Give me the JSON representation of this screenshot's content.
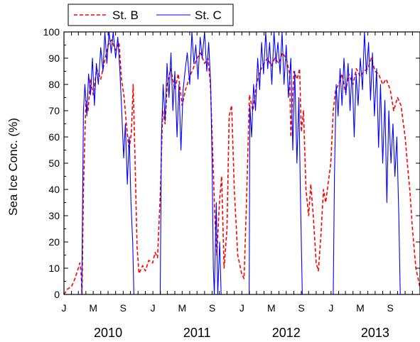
{
  "chart_data": {
    "type": "line",
    "title": "",
    "xlabel": "",
    "ylabel": "Sea Ice Conc. (%)",
    "ylim": [
      0,
      100
    ],
    "yticks": [
      0,
      10,
      20,
      30,
      40,
      50,
      60,
      70,
      80,
      90,
      100
    ],
    "xlim": [
      "2010-01-01",
      "2013-12-31"
    ],
    "month_tick_labels": [
      "J",
      "M",
      "S"
    ],
    "years": [
      "2010",
      "2011",
      "2012",
      "2013"
    ],
    "grid": false,
    "legend_position": "top-left",
    "series": [
      {
        "name": "St. B",
        "style": "dashed",
        "color": "#ff0000",
        "points": [
          [
            "2010-01-01",
            0
          ],
          [
            "2010-01-15",
            2
          ],
          [
            "2010-02-01",
            3
          ],
          [
            "2010-02-15",
            6
          ],
          [
            "2010-03-01",
            10
          ],
          [
            "2010-03-07",
            12
          ],
          [
            "2010-03-12",
            9
          ],
          [
            "2010-03-16",
            0
          ],
          [
            "2010-03-22",
            40
          ],
          [
            "2010-04-01",
            74
          ],
          [
            "2010-04-10",
            70
          ],
          [
            "2010-04-20",
            82
          ],
          [
            "2010-05-01",
            76
          ],
          [
            "2010-05-15",
            86
          ],
          [
            "2010-06-01",
            82
          ],
          [
            "2010-06-15",
            88
          ],
          [
            "2010-07-01",
            95
          ],
          [
            "2010-07-15",
            97
          ],
          [
            "2010-08-01",
            93
          ],
          [
            "2010-08-15",
            96
          ],
          [
            "2010-08-25",
            82
          ],
          [
            "2010-09-05",
            75
          ],
          [
            "2010-09-15",
            64
          ],
          [
            "2010-09-25",
            55
          ],
          [
            "2010-10-05",
            62
          ],
          [
            "2010-10-12",
            80
          ],
          [
            "2010-10-20",
            50
          ],
          [
            "2010-10-28",
            18
          ],
          [
            "2010-11-05",
            8
          ],
          [
            "2010-11-20",
            11
          ],
          [
            "2010-12-01",
            9
          ],
          [
            "2010-12-15",
            13
          ],
          [
            "2010-12-31",
            12
          ],
          [
            "2011-01-10",
            16
          ],
          [
            "2011-01-20",
            14
          ],
          [
            "2011-02-01",
            40
          ],
          [
            "2011-02-10",
            70
          ],
          [
            "2011-02-20",
            65
          ],
          [
            "2011-03-01",
            80
          ],
          [
            "2011-03-15",
            86
          ],
          [
            "2011-04-01",
            78
          ],
          [
            "2011-04-15",
            84
          ],
          [
            "2011-05-01",
            72
          ],
          [
            "2011-05-15",
            78
          ],
          [
            "2011-06-01",
            83
          ],
          [
            "2011-06-15",
            86
          ],
          [
            "2011-07-01",
            90
          ],
          [
            "2011-07-15",
            92
          ],
          [
            "2011-08-01",
            88
          ],
          [
            "2011-08-15",
            90
          ],
          [
            "2011-08-25",
            80
          ],
          [
            "2011-09-05",
            50
          ],
          [
            "2011-09-12",
            30
          ],
          [
            "2011-09-20",
            15
          ],
          [
            "2011-10-01",
            35
          ],
          [
            "2011-10-10",
            45
          ],
          [
            "2011-10-20",
            10
          ],
          [
            "2011-11-01",
            25
          ],
          [
            "2011-11-10",
            68
          ],
          [
            "2011-11-20",
            72
          ],
          [
            "2011-12-01",
            40
          ],
          [
            "2011-12-15",
            15
          ],
          [
            "2011-12-31",
            8
          ],
          [
            "2012-01-10",
            6
          ],
          [
            "2012-01-20",
            35
          ],
          [
            "2012-02-01",
            76
          ],
          [
            "2012-02-15",
            70
          ],
          [
            "2012-03-01",
            80
          ],
          [
            "2012-03-15",
            85
          ],
          [
            "2012-04-01",
            88
          ],
          [
            "2012-04-15",
            90
          ],
          [
            "2012-05-01",
            87
          ],
          [
            "2012-05-15",
            90
          ],
          [
            "2012-06-01",
            88
          ],
          [
            "2012-06-15",
            92
          ],
          [
            "2012-07-01",
            90
          ],
          [
            "2012-07-15",
            84
          ],
          [
            "2012-07-20",
            60
          ],
          [
            "2012-08-01",
            85
          ],
          [
            "2012-08-15",
            82
          ],
          [
            "2012-08-25",
            86
          ],
          [
            "2012-09-01",
            62
          ],
          [
            "2012-09-10",
            70
          ],
          [
            "2012-09-20",
            40
          ],
          [
            "2012-10-01",
            30
          ],
          [
            "2012-10-10",
            42
          ],
          [
            "2012-10-20",
            30
          ],
          [
            "2012-11-01",
            12
          ],
          [
            "2012-11-10",
            9
          ],
          [
            "2012-11-20",
            22
          ],
          [
            "2012-12-01",
            40
          ],
          [
            "2012-12-10",
            35
          ],
          [
            "2012-12-31",
            50
          ],
          [
            "2013-01-10",
            70
          ],
          [
            "2013-01-20",
            78
          ],
          [
            "2013-02-01",
            80
          ],
          [
            "2013-02-15",
            84
          ],
          [
            "2013-03-01",
            77
          ],
          [
            "2013-03-15",
            84
          ],
          [
            "2013-04-01",
            80
          ],
          [
            "2013-04-15",
            86
          ],
          [
            "2013-05-01",
            83
          ],
          [
            "2013-05-15",
            85
          ],
          [
            "2013-06-01",
            86
          ],
          [
            "2013-06-15",
            90
          ],
          [
            "2013-07-01",
            85
          ],
          [
            "2013-07-15",
            84
          ],
          [
            "2013-08-01",
            80
          ],
          [
            "2013-08-15",
            82
          ],
          [
            "2013-09-01",
            78
          ],
          [
            "2013-09-15",
            70
          ],
          [
            "2013-10-01",
            75
          ],
          [
            "2013-10-15",
            72
          ],
          [
            "2013-11-01",
            60
          ],
          [
            "2013-11-10",
            50
          ],
          [
            "2013-11-20",
            40
          ],
          [
            "2013-12-01",
            25
          ],
          [
            "2013-12-15",
            10
          ],
          [
            "2013-12-31",
            3
          ]
        ]
      },
      {
        "name": "St. C",
        "style": "solid",
        "color": "#0000ff",
        "points": [
          [
            "2010-01-01",
            0
          ],
          [
            "2010-03-15",
            0
          ],
          [
            "2010-03-22",
            70
          ],
          [
            "2010-03-28",
            80
          ],
          [
            "2010-04-05",
            68
          ],
          [
            "2010-04-12",
            84
          ],
          [
            "2010-04-20",
            76
          ],
          [
            "2010-04-28",
            90
          ],
          [
            "2010-05-06",
            72
          ],
          [
            "2010-05-14",
            88
          ],
          [
            "2010-05-22",
            80
          ],
          [
            "2010-06-01",
            94
          ],
          [
            "2010-06-10",
            85
          ],
          [
            "2010-06-18",
            100
          ],
          [
            "2010-06-26",
            88
          ],
          [
            "2010-07-05",
            100
          ],
          [
            "2010-07-14",
            92
          ],
          [
            "2010-07-22",
            100
          ],
          [
            "2010-08-01",
            90
          ],
          [
            "2010-08-10",
            98
          ],
          [
            "2010-08-18",
            86
          ],
          [
            "2010-08-26",
            70
          ],
          [
            "2010-09-03",
            52
          ],
          [
            "2010-09-10",
            65
          ],
          [
            "2010-09-18",
            42
          ],
          [
            "2010-09-26",
            60
          ],
          [
            "2010-10-03",
            35
          ],
          [
            "2010-10-10",
            20
          ],
          [
            "2010-10-15",
            0
          ],
          [
            "2010-12-31",
            0
          ],
          [
            "2011-01-31",
            0
          ],
          [
            "2011-02-05",
            60
          ],
          [
            "2011-02-12",
            80
          ],
          [
            "2011-02-20",
            66
          ],
          [
            "2011-02-28",
            88
          ],
          [
            "2011-03-08",
            75
          ],
          [
            "2011-03-16",
            92
          ],
          [
            "2011-03-24",
            70
          ],
          [
            "2011-04-01",
            85
          ],
          [
            "2011-04-10",
            60
          ],
          [
            "2011-04-18",
            80
          ],
          [
            "2011-04-26",
            55
          ],
          [
            "2011-05-05",
            78
          ],
          [
            "2011-05-14",
            86
          ],
          [
            "2011-05-22",
            92
          ],
          [
            "2011-06-01",
            80
          ],
          [
            "2011-06-10",
            100
          ],
          [
            "2011-06-18",
            88
          ],
          [
            "2011-06-26",
            95
          ],
          [
            "2011-07-05",
            82
          ],
          [
            "2011-07-14",
            98
          ],
          [
            "2011-07-22",
            90
          ],
          [
            "2011-08-01",
            100
          ],
          [
            "2011-08-10",
            85
          ],
          [
            "2011-08-18",
            96
          ],
          [
            "2011-08-26",
            80
          ],
          [
            "2011-09-01",
            50
          ],
          [
            "2011-09-06",
            10
          ],
          [
            "2011-09-10",
            0
          ],
          [
            "2011-09-18",
            35
          ],
          [
            "2011-09-24",
            0
          ],
          [
            "2011-10-02",
            20
          ],
          [
            "2011-10-08",
            0
          ],
          [
            "2011-10-14",
            0
          ],
          [
            "2011-12-31",
            0
          ],
          [
            "2012-01-31",
            0
          ],
          [
            "2012-02-03",
            72
          ],
          [
            "2012-02-10",
            60
          ],
          [
            "2012-02-18",
            80
          ],
          [
            "2012-02-26",
            70
          ],
          [
            "2012-03-06",
            90
          ],
          [
            "2012-03-14",
            78
          ],
          [
            "2012-03-22",
            96
          ],
          [
            "2012-03-30",
            84
          ],
          [
            "2012-04-08",
            100
          ],
          [
            "2012-04-16",
            86
          ],
          [
            "2012-04-24",
            96
          ],
          [
            "2012-05-03",
            80
          ],
          [
            "2012-05-12",
            100
          ],
          [
            "2012-05-20",
            88
          ],
          [
            "2012-05-28",
            96
          ],
          [
            "2012-06-06",
            84
          ],
          [
            "2012-06-14",
            100
          ],
          [
            "2012-06-22",
            80
          ],
          [
            "2012-07-01",
            95
          ],
          [
            "2012-07-10",
            75
          ],
          [
            "2012-07-20",
            90
          ],
          [
            "2012-07-28",
            55
          ],
          [
            "2012-08-05",
            85
          ],
          [
            "2012-08-14",
            50
          ],
          [
            "2012-08-22",
            75
          ],
          [
            "2012-08-28",
            40
          ],
          [
            "2012-09-05",
            0
          ],
          [
            "2012-10-01",
            0
          ],
          [
            "2012-10-15",
            0
          ],
          [
            "2012-12-31",
            0
          ],
          [
            "2013-01-10",
            0
          ],
          [
            "2013-01-15",
            45
          ],
          [
            "2013-01-22",
            80
          ],
          [
            "2013-01-30",
            68
          ],
          [
            "2013-02-07",
            86
          ],
          [
            "2013-02-15",
            72
          ],
          [
            "2013-02-23",
            90
          ],
          [
            "2013-03-03",
            76
          ],
          [
            "2013-03-12",
            88
          ],
          [
            "2013-03-20",
            70
          ],
          [
            "2013-03-28",
            86
          ],
          [
            "2013-04-06",
            60
          ],
          [
            "2013-04-14",
            84
          ],
          [
            "2013-04-22",
            72
          ],
          [
            "2013-05-01",
            90
          ],
          [
            "2013-05-10",
            78
          ],
          [
            "2013-05-18",
            100
          ],
          [
            "2013-05-26",
            84
          ],
          [
            "2013-06-04",
            96
          ],
          [
            "2013-06-12",
            74
          ],
          [
            "2013-06-20",
            92
          ],
          [
            "2013-06-28",
            68
          ],
          [
            "2013-07-07",
            86
          ],
          [
            "2013-07-15",
            56
          ],
          [
            "2013-07-23",
            80
          ],
          [
            "2013-08-01",
            50
          ],
          [
            "2013-08-10",
            74
          ],
          [
            "2013-08-18",
            35
          ],
          [
            "2013-08-26",
            70
          ],
          [
            "2013-09-04",
            50
          ],
          [
            "2013-09-12",
            65
          ],
          [
            "2013-09-20",
            45
          ],
          [
            "2013-09-28",
            60
          ],
          [
            "2013-10-06",
            30
          ],
          [
            "2013-10-12",
            0
          ],
          [
            "2013-12-31",
            0
          ]
        ]
      }
    ]
  }
}
